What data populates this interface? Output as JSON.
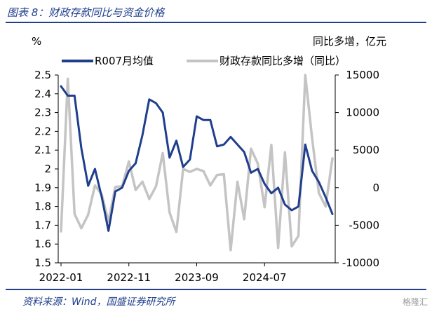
{
  "figure_title": "图表 8：财政存款同比与资金价格",
  "source_note": "资料来源：Wind，国盛证券研究所",
  "watermark": "格隆汇",
  "colors": {
    "accent": "#1f3e8c",
    "series1": "#1f3e8c",
    "series2": "#c4c4c4"
  },
  "chart_data": {
    "type": "line",
    "left_unit": "%",
    "right_unit": "同比多增，亿元",
    "x_ticks": [
      "2022-01",
      "2022-11",
      "2023-09",
      "2024-07"
    ],
    "x": [
      "2022-01",
      "2022-02",
      "2022-03",
      "2022-04",
      "2022-05",
      "2022-06",
      "2022-07",
      "2022-08",
      "2022-09",
      "2022-10",
      "2022-11",
      "2022-12",
      "2023-01",
      "2023-02",
      "2023-03",
      "2023-04",
      "2023-05",
      "2023-06",
      "2023-07",
      "2023-08",
      "2023-09",
      "2023-10",
      "2023-11",
      "2023-12",
      "2024-01",
      "2024-02",
      "2024-03",
      "2024-04",
      "2024-05",
      "2024-06",
      "2024-07",
      "2024-08",
      "2024-09",
      "2024-10",
      "2024-11",
      "2024-12",
      "2025-01",
      "2025-02",
      "2025-03",
      "2025-04",
      "2025-05"
    ],
    "y_left": {
      "min": 1.5,
      "max": 2.5,
      "ticks": [
        1.5,
        1.6,
        1.7,
        1.8,
        1.9,
        2.0,
        2.1,
        2.2,
        2.3,
        2.4,
        2.5
      ],
      "tick_labels": [
        "1.5",
        "1.6",
        "1.7",
        "1.8",
        "1.9",
        "2",
        "2.1",
        "2.2",
        "2.3",
        "2.4",
        "2.5"
      ]
    },
    "y_right": {
      "min": -10000,
      "max": 15000,
      "ticks": [
        -10000,
        -5000,
        0,
        5000,
        10000,
        15000
      ],
      "tick_labels": [
        "-10000",
        "-5000",
        "0",
        "5000",
        "10000",
        "15000"
      ]
    },
    "legend_position": "top",
    "series": [
      {
        "name": "R007月均值",
        "axis": "left",
        "color": "#1f3e8c",
        "values": [
          2.44,
          2.39,
          2.39,
          2.11,
          1.91,
          2.0,
          1.85,
          1.67,
          1.88,
          1.9,
          1.99,
          2.03,
          2.18,
          2.37,
          2.35,
          2.3,
          2.06,
          2.15,
          2.01,
          2.05,
          2.28,
          2.26,
          2.26,
          2.12,
          2.13,
          2.17,
          2.13,
          2.09,
          1.98,
          2.0,
          1.92,
          1.87,
          1.9,
          1.81,
          1.78,
          1.8,
          2.13,
          1.99,
          1.93,
          1.85,
          1.76
        ]
      },
      {
        "name": "财政存款同比多增（同比）",
        "axis": "right",
        "color": "#c4c4c4",
        "values": [
          -5800,
          14500,
          -3500,
          -5400,
          -3600,
          300,
          -900,
          -4500,
          100,
          200,
          3500,
          -300,
          800,
          -1500,
          200,
          4600,
          -3300,
          -5900,
          2500,
          2100,
          2500,
          2200,
          300,
          1700,
          1800,
          -8300,
          800,
          -4200,
          5200,
          3200,
          -2600,
          5700,
          -8000,
          4700,
          -7800,
          -6400,
          15000,
          6600,
          -700,
          -2500,
          3900
        ]
      }
    ]
  }
}
